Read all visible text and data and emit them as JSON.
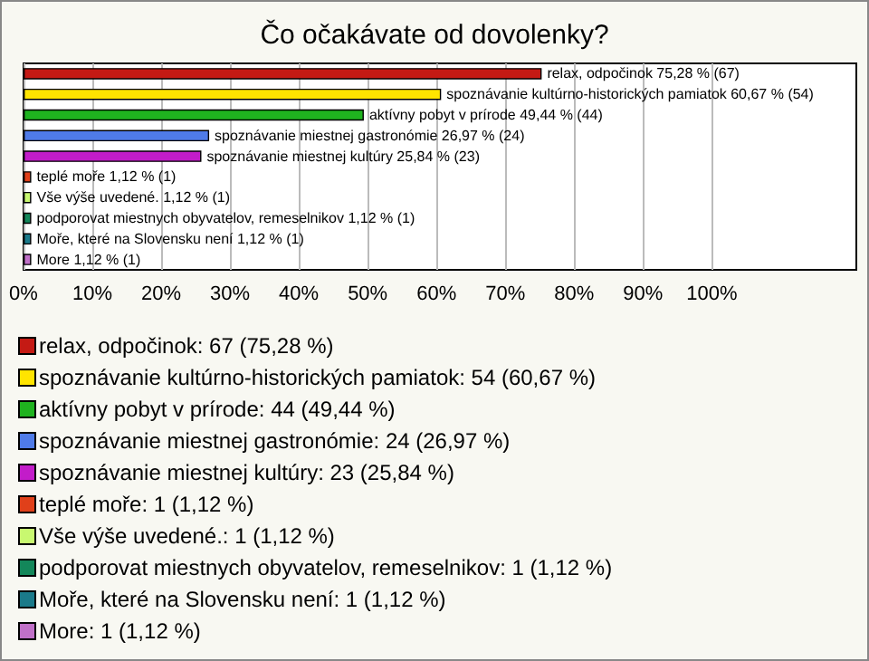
{
  "chart_data": {
    "type": "bar",
    "orientation": "horizontal",
    "stacked": true,
    "title": "Čo očakávate od dovolenky?",
    "categories": [
      null,
      null,
      null,
      null,
      null,
      null,
      null,
      null,
      null,
      null
    ],
    "series": [
      {
        "name": "relax, odpočinok: 67 (75,28 %)",
        "color": "#c41a14",
        "values": [
          75.28,
          null,
          null,
          null,
          null,
          null,
          null,
          null,
          null,
          null
        ],
        "value_labels": [
          "relax, odpočinok 75,28 % (67)",
          null,
          null,
          null,
          null,
          null,
          null,
          null,
          null,
          null
        ]
      },
      {
        "name": "spoznávanie kultúrno-historických pamiatok: 54 (60,67 %)",
        "color": "#ffe400",
        "values": [
          null,
          60.67,
          null,
          null,
          null,
          null,
          null,
          null,
          null,
          null
        ],
        "value_labels": [
          null,
          "spoznávanie kultúrno-historických pamiatok 60,67 % (54)",
          null,
          null,
          null,
          null,
          null,
          null,
          null,
          null
        ]
      },
      {
        "name": "aktívny pobyt v prírode: 44 (49,44 %)",
        "color": "#1fb31f",
        "values": [
          null,
          null,
          49.44,
          null,
          null,
          null,
          null,
          null,
          null,
          null
        ],
        "value_labels": [
          null,
          null,
          "aktívny pobyt v prírode 49,44 % (44)",
          null,
          null,
          null,
          null,
          null,
          null,
          null
        ]
      },
      {
        "name": "spoznávanie miestnej gastronómie: 24 (26,97 %)",
        "color": "#4f7be8",
        "values": [
          null,
          null,
          null,
          26.97,
          null,
          null,
          null,
          null,
          null,
          null
        ],
        "value_labels": [
          null,
          null,
          null,
          "spoznávanie miestnej gastronómie 26,97 % (24)",
          null,
          null,
          null,
          null,
          null,
          null
        ]
      },
      {
        "name": "spoznávanie miestnej kultúry: 23 (25,84 %)",
        "color": "#c21cc9",
        "values": [
          null,
          null,
          null,
          null,
          25.84,
          null,
          null,
          null,
          null,
          null
        ],
        "value_labels": [
          null,
          null,
          null,
          null,
          "spoznávanie miestnej kultúry 25,84 % (23)",
          null,
          null,
          null,
          null,
          null
        ]
      },
      {
        "name": "teplé moře: 1 (1,12 %)",
        "color": "#e0401a",
        "values": [
          null,
          null,
          null,
          null,
          null,
          1.12,
          null,
          null,
          null,
          null
        ],
        "value_labels": [
          null,
          null,
          null,
          null,
          null,
          "teplé moře 1,12 % (1)",
          null,
          null,
          null,
          null
        ]
      },
      {
        "name": "Vše výše uvedené.: 1 (1,12 %)",
        "color": "#c8f870",
        "values": [
          null,
          null,
          null,
          null,
          null,
          null,
          1.12,
          null,
          null,
          null
        ],
        "value_labels": [
          null,
          null,
          null,
          null,
          null,
          null,
          "Vše výše uvedené. 1,12 % (1)",
          null,
          null,
          null
        ]
      },
      {
        "name": "podporovat miestnych obyvatelov, remeselnikov: 1 (1,12 %)",
        "color": "#13875a",
        "values": [
          null,
          null,
          null,
          null,
          null,
          null,
          null,
          1.12,
          null,
          null
        ],
        "value_labels": [
          null,
          null,
          null,
          null,
          null,
          null,
          null,
          "podporovat miestnych obyvatelov, remeselnikov 1,12 % (1)",
          null,
          null
        ]
      },
      {
        "name": "Moře, které na Slovensku není: 1 (1,12 %)",
        "color": "#1a7a8a",
        "values": [
          null,
          null,
          null,
          null,
          null,
          null,
          null,
          null,
          1.12,
          null
        ],
        "value_labels": [
          null,
          null,
          null,
          null,
          null,
          null,
          null,
          null,
          "Moře, které na Slovensku není 1,12 % (1)",
          null
        ]
      },
      {
        "name": "More: 1 (1,12 %)",
        "color": "#c070c8",
        "values": [
          null,
          null,
          null,
          null,
          null,
          null,
          null,
          null,
          null,
          1.12
        ],
        "value_labels": [
          null,
          null,
          null,
          null,
          null,
          null,
          null,
          null,
          null,
          "More 1,12 % (1)"
        ]
      }
    ],
    "xlim": [
      0,
      121
    ],
    "xticks": [
      {
        "value": 0,
        "label": "0%"
      },
      {
        "value": 10,
        "label": "10%"
      },
      {
        "value": 20,
        "label": "20%"
      },
      {
        "value": 30,
        "label": "30%"
      },
      {
        "value": 40,
        "label": "40%"
      },
      {
        "value": 50,
        "label": "50%"
      },
      {
        "value": 60,
        "label": "60%"
      },
      {
        "value": 70,
        "label": "70%"
      },
      {
        "value": 80,
        "label": "80%"
      },
      {
        "value": 90,
        "label": "90%"
      },
      {
        "value": 100,
        "label": "100%"
      }
    ],
    "grid": "x",
    "legend": "bottom"
  }
}
